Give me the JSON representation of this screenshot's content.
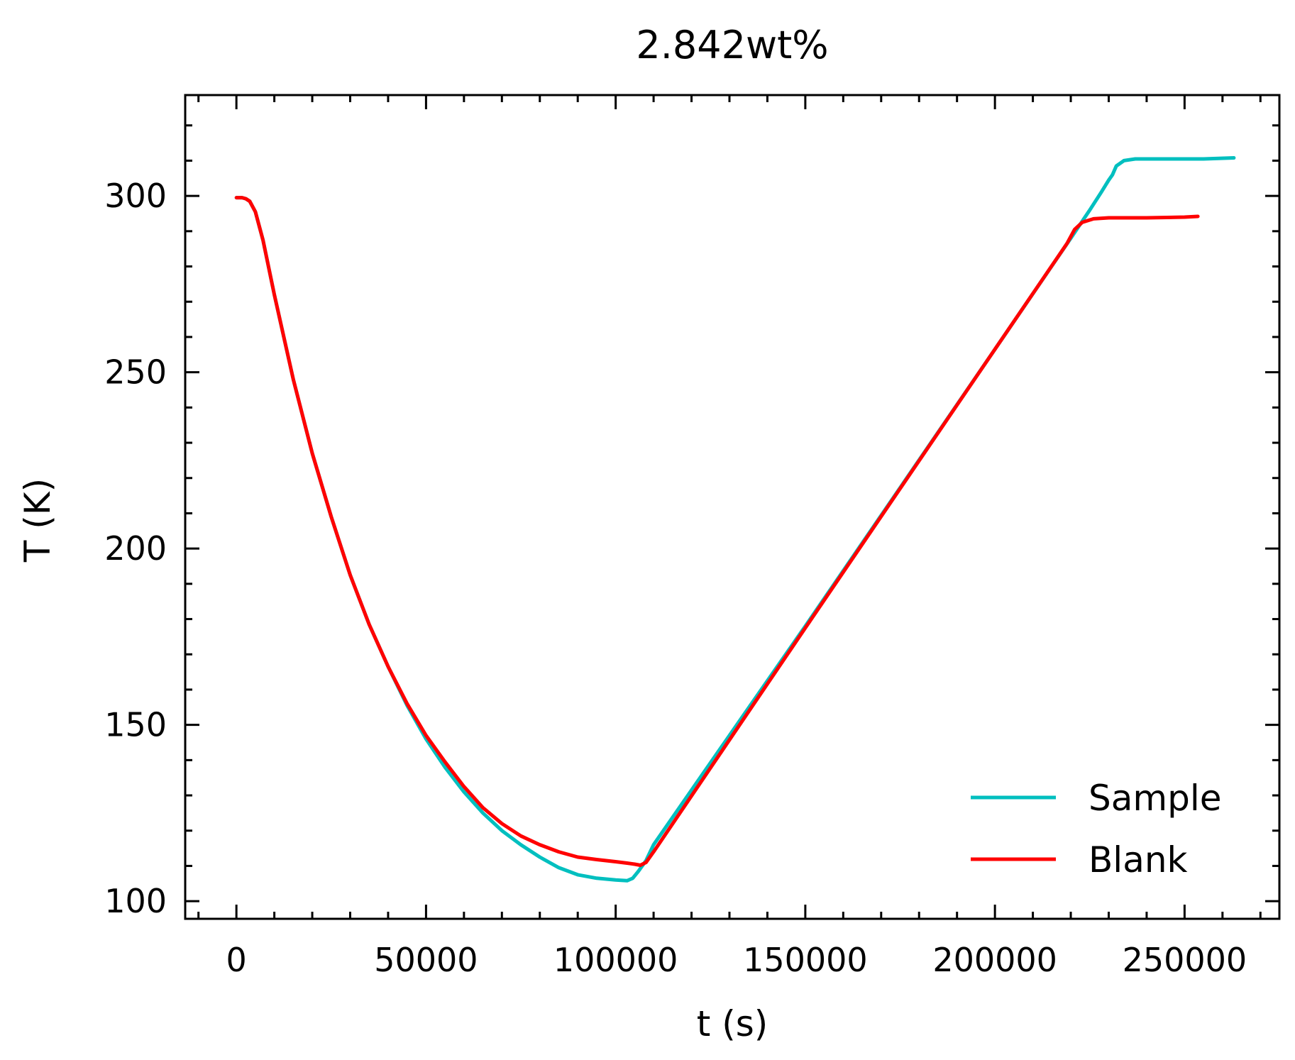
{
  "chart_data": {
    "type": "line",
    "title": "2.842wt%",
    "xlabel": "t (s)",
    "ylabel": "T (K)",
    "xlim": [
      -13500,
      275000
    ],
    "ylim": [
      95,
      328.6
    ],
    "xticks": [
      0,
      50000,
      100000,
      150000,
      200000,
      250000
    ],
    "yticks": [
      100,
      150,
      200,
      250,
      300
    ],
    "grid": false,
    "legend_position": "lower-right",
    "series": [
      {
        "name": "Sample",
        "color": "#00bfbf",
        "x": [
          0,
          1500,
          2500,
          3500,
          5000,
          7000,
          10000,
          15000,
          20000,
          25000,
          30000,
          35000,
          40000,
          45000,
          50000,
          55000,
          60000,
          65000,
          70000,
          75000,
          80000,
          85000,
          90000,
          95000,
          100000,
          103000,
          104500,
          106000,
          108000,
          110000,
          150000,
          200000,
          220000,
          225000,
          228000,
          230000,
          231000,
          232000,
          234000,
          237000,
          245000,
          255000,
          263000
        ],
        "y": [
          299.5,
          299.5,
          299.2,
          298.5,
          295.5,
          287.5,
          272,
          248,
          227,
          209,
          192.5,
          178.5,
          166.5,
          155.5,
          146,
          138,
          131,
          125,
          120,
          116,
          112.5,
          109.5,
          107.5,
          106.5,
          106,
          105.8,
          106.5,
          108.5,
          111.5,
          116,
          178,
          256.5,
          288,
          296,
          301,
          304.5,
          306,
          308.5,
          310,
          310.5,
          310.5,
          310.5,
          310.8
        ]
      },
      {
        "name": "Blank",
        "color": "#ff0000",
        "x": [
          0,
          1500,
          2500,
          3500,
          5000,
          7000,
          10000,
          15000,
          20000,
          25000,
          30000,
          35000,
          40000,
          45000,
          50000,
          55000,
          60000,
          65000,
          70000,
          75000,
          80000,
          85000,
          90000,
          95000,
          100000,
          103000,
          105000,
          106500,
          108000,
          110000,
          150000,
          200000,
          219000,
          221000,
          223000,
          226000,
          230000,
          240000,
          250000,
          253500
        ],
        "y": [
          299.5,
          299.5,
          299.2,
          298.5,
          295.5,
          287.5,
          272,
          248,
          227,
          209,
          192.5,
          178.5,
          166.5,
          156,
          147,
          139.5,
          132.5,
          126.5,
          122,
          118.5,
          116,
          114,
          112.5,
          111.8,
          111.2,
          110.8,
          110.5,
          110.2,
          111,
          114,
          177.5,
          256.5,
          286.5,
          290.5,
          292.5,
          293.5,
          293.8,
          293.8,
          294,
          294.2
        ]
      }
    ]
  }
}
